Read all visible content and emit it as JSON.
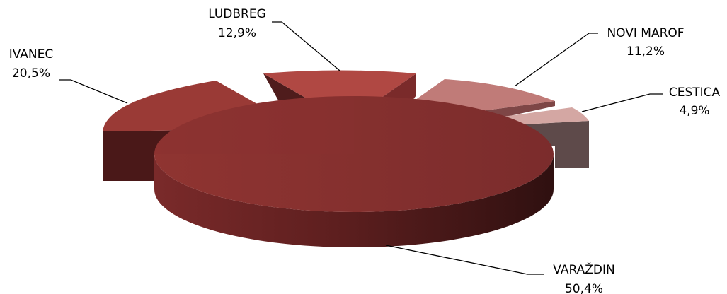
{
  "chart_data": {
    "type": "pie",
    "style": "3d-exploded",
    "title": "",
    "slices": [
      {
        "label": "VARAŽDIN",
        "value_text": "50,4%",
        "value": 50.4,
        "color": "#842f2f"
      },
      {
        "label": "IVANEC",
        "value_text": "20,5%",
        "value": 20.5,
        "color": "#9a3a36"
      },
      {
        "label": "LUDBREG",
        "value_text": "12,9%",
        "value": 12.9,
        "color": "#b04843"
      },
      {
        "label": "NOVI MAROF",
        "value_text": "11,2%",
        "value": 11.2,
        "color": "#c07b78"
      },
      {
        "label": "CESTICA",
        "value_text": "4,9%",
        "value": 4.9,
        "color": "#d4a7a3"
      }
    ]
  }
}
